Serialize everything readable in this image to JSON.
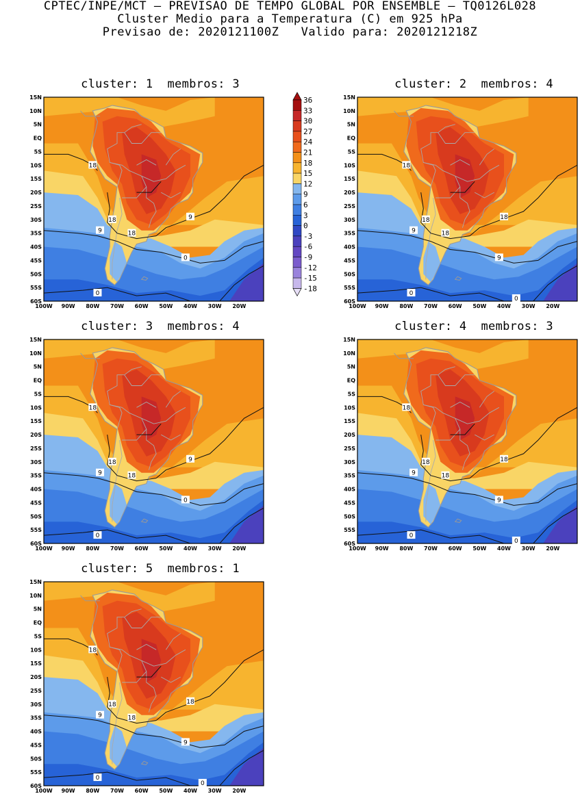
{
  "titles": {
    "line1": "CPTEC/INPE/MCT – PREVISAO DE TEMPO GLOBAL POR ENSEMBLE – TQ0126L028",
    "line2": "Cluster Medio para a Temperatura (C) em 925 hPa",
    "line3": "Previsao de: 2020121100Z   Valido para: 2020121218Z"
  },
  "panels": [
    {
      "title": "cluster: 1  membros: 3",
      "contours": [
        "18",
        "18",
        "18",
        "9",
        "9",
        "0",
        "0"
      ]
    },
    {
      "title": "cluster: 2  membros: 4",
      "contours": [
        "18",
        "18",
        "18",
        "18",
        "9",
        "9",
        "0",
        "0"
      ]
    },
    {
      "title": "cluster: 3  membros: 4",
      "contours": [
        "18",
        "18",
        "18",
        "9",
        "9",
        "0",
        "0"
      ]
    },
    {
      "title": "cluster: 4  membros: 3",
      "contours": [
        "18",
        "18",
        "18",
        "18",
        "9",
        "9",
        "0",
        "0"
      ]
    },
    {
      "title": "cluster: 5  membros: 1",
      "contours": [
        "18",
        "18",
        "18",
        "18",
        "9",
        "9",
        "0",
        "0"
      ]
    }
  ],
  "axes": {
    "lat_labels": [
      "15N",
      "10N",
      "5N",
      "EQ",
      "5S",
      "10S",
      "15S",
      "20S",
      "25S",
      "30S",
      "35S",
      "40S",
      "45S",
      "50S",
      "55S",
      "60S"
    ],
    "lon_labels": [
      "100W",
      "90W",
      "80W",
      "70W",
      "60W",
      "50W",
      "40W",
      "30W",
      "20W"
    ]
  },
  "legend": {
    "levels": [
      "36",
      "33",
      "30",
      "27",
      "24",
      "21",
      "18",
      "15",
      "12",
      "9",
      "6",
      "3",
      "0",
      "-3",
      "-6",
      "-9",
      "-12",
      "-15",
      "-18"
    ],
    "colors": [
      "#a50f0f",
      "#c62828",
      "#d83a1e",
      "#e8501c",
      "#f06a1c",
      "#f39019",
      "#f7b42f",
      "#f9d566",
      "#85b7ee",
      "#5d9bea",
      "#3f7fe2",
      "#2763d7",
      "#3048c4",
      "#4b41bd",
      "#6347c2",
      "#7b5ccd",
      "#9a83dc",
      "#c7b8ec"
    ]
  }
}
